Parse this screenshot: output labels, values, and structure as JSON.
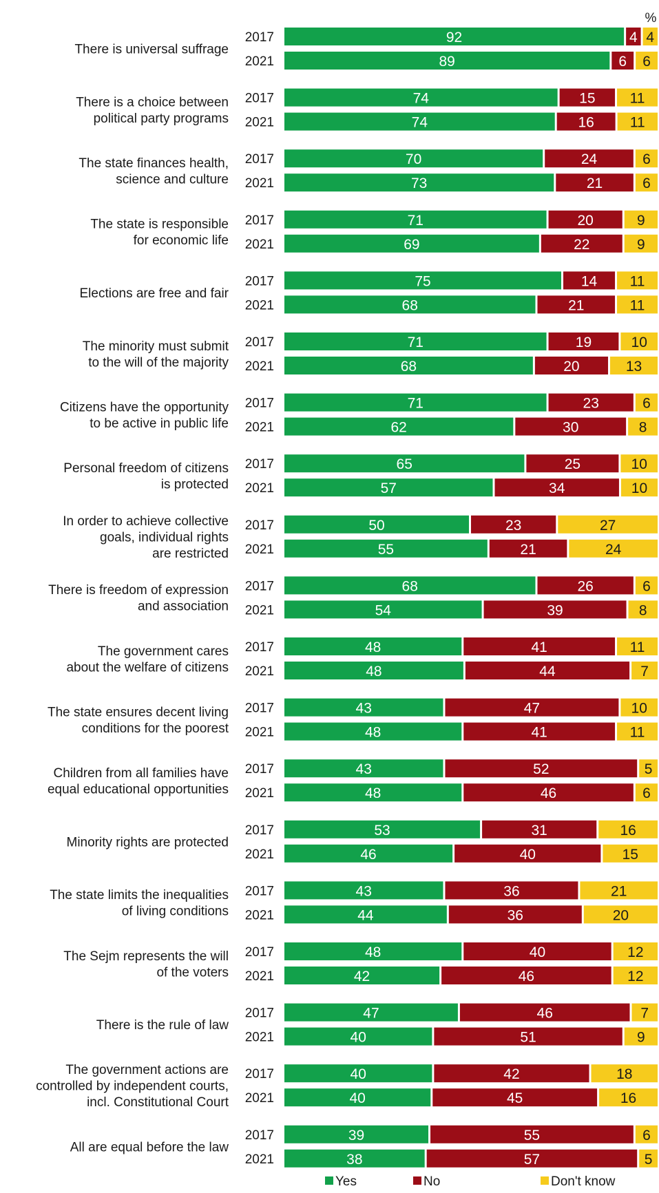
{
  "chart_data": {
    "type": "bar",
    "orientation": "horizontal",
    "stacked": true,
    "unit": "%",
    "legend_placement": "bottom",
    "colors": {
      "Yes": "#12a14b",
      "No": "#9b0d17",
      "Don't know": "#f6cb1d"
    },
    "series": [
      {
        "name": "Yes"
      },
      {
        "name": "No"
      },
      {
        "name": "Don't know"
      }
    ],
    "categories": [
      {
        "label": [
          "There is universal suffrage"
        ],
        "rows": [
          {
            "year": "2017",
            "values": [
              92,
              4,
              4
            ]
          },
          {
            "year": "2021",
            "values": [
              89,
              6,
              6
            ]
          }
        ]
      },
      {
        "label": [
          "There is a choice between",
          "political party programs"
        ],
        "rows": [
          {
            "year": "2017",
            "values": [
              74,
              15,
              11
            ]
          },
          {
            "year": "2021",
            "values": [
              74,
              16,
              11
            ]
          }
        ]
      },
      {
        "label": [
          "The state finances health,",
          "science and culture"
        ],
        "rows": [
          {
            "year": "2017",
            "values": [
              70,
              24,
              6
            ]
          },
          {
            "year": "2021",
            "values": [
              73,
              21,
              6
            ]
          }
        ]
      },
      {
        "label": [
          "The state is responsible",
          "for economic life"
        ],
        "rows": [
          {
            "year": "2017",
            "values": [
              71,
              20,
              9
            ]
          },
          {
            "year": "2021",
            "values": [
              69,
              22,
              9
            ]
          }
        ]
      },
      {
        "label": [
          "Elections are free and fair"
        ],
        "rows": [
          {
            "year": "2017",
            "values": [
              75,
              14,
              11
            ]
          },
          {
            "year": "2021",
            "values": [
              68,
              21,
              11
            ]
          }
        ]
      },
      {
        "label": [
          "The minority must submit",
          "to the will of the majority"
        ],
        "rows": [
          {
            "year": "2017",
            "values": [
              71,
              19,
              10
            ]
          },
          {
            "year": "2021",
            "values": [
              68,
              20,
              13
            ]
          }
        ]
      },
      {
        "label": [
          "Citizens have the opportunity",
          "to be active in public life"
        ],
        "rows": [
          {
            "year": "2017",
            "values": [
              71,
              23,
              6
            ]
          },
          {
            "year": "2021",
            "values": [
              62,
              30,
              8
            ]
          }
        ]
      },
      {
        "label": [
          "Personal freedom of citizens",
          "is protected"
        ],
        "rows": [
          {
            "year": "2017",
            "values": [
              65,
              25,
              10
            ]
          },
          {
            "year": "2021",
            "values": [
              57,
              34,
              10
            ]
          }
        ]
      },
      {
        "label": [
          "In order to achieve collective",
          "goals, individual rights",
          "are restricted"
        ],
        "rows": [
          {
            "year": "2017",
            "values": [
              50,
              23,
              27
            ]
          },
          {
            "year": "2021",
            "values": [
              55,
              21,
              24
            ]
          }
        ]
      },
      {
        "label": [
          "There is freedom of expression",
          "and association"
        ],
        "rows": [
          {
            "year": "2017",
            "values": [
              68,
              26,
              6
            ]
          },
          {
            "year": "2021",
            "values": [
              54,
              39,
              8
            ]
          }
        ]
      },
      {
        "label": [
          "The government cares",
          "about the welfare of citizens"
        ],
        "rows": [
          {
            "year": "2017",
            "values": [
              48,
              41,
              11
            ]
          },
          {
            "year": "2021",
            "values": [
              48,
              44,
              7
            ]
          }
        ]
      },
      {
        "label": [
          "The state ensures decent living",
          "conditions for the poorest"
        ],
        "rows": [
          {
            "year": "2017",
            "values": [
              43,
              47,
              10
            ]
          },
          {
            "year": "2021",
            "values": [
              48,
              41,
              11
            ]
          }
        ]
      },
      {
        "label": [
          "Children from all families have",
          "equal educational opportunities"
        ],
        "rows": [
          {
            "year": "2017",
            "values": [
              43,
              52,
              5
            ]
          },
          {
            "year": "2021",
            "values": [
              48,
              46,
              6
            ]
          }
        ]
      },
      {
        "label": [
          "Minority rights are protected"
        ],
        "rows": [
          {
            "year": "2017",
            "values": [
              53,
              31,
              16
            ]
          },
          {
            "year": "2021",
            "values": [
              46,
              40,
              15
            ]
          }
        ]
      },
      {
        "label": [
          "The state limits the inequalities",
          "of living conditions"
        ],
        "rows": [
          {
            "year": "2017",
            "values": [
              43,
              36,
              21
            ]
          },
          {
            "year": "2021",
            "values": [
              44,
              36,
              20
            ]
          }
        ]
      },
      {
        "label": [
          "The Sejm represents the will",
          "of the voters"
        ],
        "rows": [
          {
            "year": "2017",
            "values": [
              48,
              40,
              12
            ]
          },
          {
            "year": "2021",
            "values": [
              42,
              46,
              12
            ]
          }
        ]
      },
      {
        "label": [
          "There is the rule of law"
        ],
        "rows": [
          {
            "year": "2017",
            "values": [
              47,
              46,
              7
            ]
          },
          {
            "year": "2021",
            "values": [
              40,
              51,
              9
            ]
          }
        ]
      },
      {
        "label": [
          "The government actions are",
          "controlled by independent courts,",
          "incl. Constitutional Court"
        ],
        "rows": [
          {
            "year": "2017",
            "values": [
              40,
              42,
              18
            ]
          },
          {
            "year": "2021",
            "values": [
              40,
              45,
              16
            ]
          }
        ]
      },
      {
        "label": [
          "All are equal before the law"
        ],
        "rows": [
          {
            "year": "2017",
            "values": [
              39,
              55,
              6
            ]
          },
          {
            "year": "2021",
            "values": [
              38,
              57,
              5
            ]
          }
        ]
      }
    ]
  }
}
